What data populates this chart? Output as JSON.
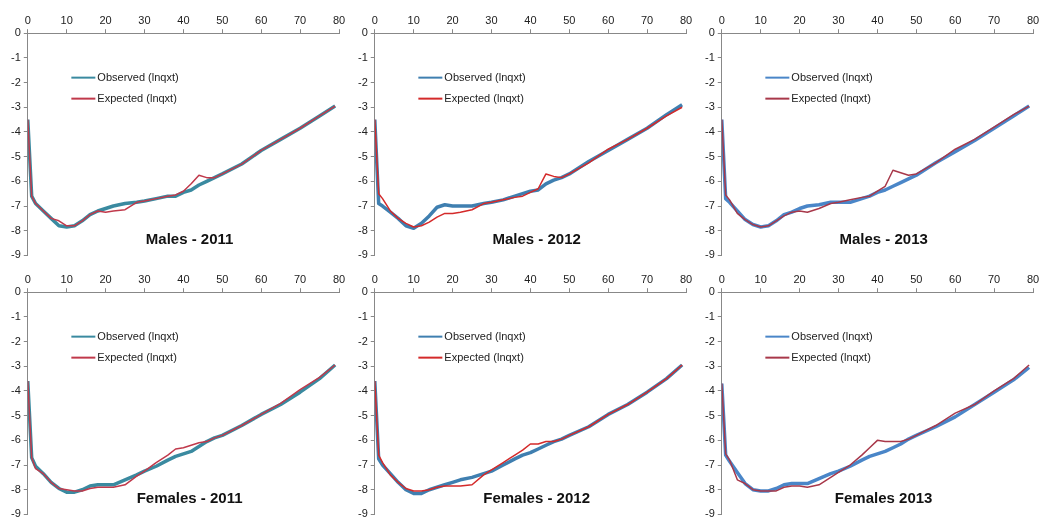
{
  "chart_data": [
    {
      "type": "line",
      "title": "Males - 2011",
      "x": [
        0,
        1,
        2,
        4,
        6,
        8,
        10,
        12,
        14,
        16,
        18,
        20,
        22,
        25,
        28,
        30,
        33,
        36,
        38,
        40,
        42,
        44,
        46,
        48,
        50,
        55,
        60,
        65,
        70,
        75,
        79
      ],
      "xlim": [
        0,
        80
      ],
      "xticks": [
        0,
        10,
        20,
        30,
        40,
        50,
        60,
        70,
        80
      ],
      "ylim": [
        -9,
        0
      ],
      "yticks": [
        0,
        -1,
        -2,
        -3,
        -4,
        -5,
        -6,
        -7,
        -8,
        -9
      ],
      "grid": false,
      "legend": "top left",
      "marker": "none",
      "series": [
        {
          "name": "Observed (lnqxt)",
          "color": "#3a8aa0",
          "values": [
            -3.5,
            -6.6,
            -6.9,
            -7.2,
            -7.5,
            -7.8,
            -7.85,
            -7.8,
            -7.6,
            -7.35,
            -7.2,
            -7.1,
            -7.0,
            -6.9,
            -6.85,
            -6.8,
            -6.7,
            -6.6,
            -6.6,
            -6.45,
            -6.35,
            -6.15,
            -6.0,
            -5.85,
            -5.7,
            -5.3,
            -4.75,
            -4.3,
            -3.85,
            -3.35,
            -2.95
          ]
        },
        {
          "name": "Expected (lnqxt)",
          "color": "#c0394b",
          "values": [
            -3.5,
            -6.6,
            -6.9,
            -7.2,
            -7.5,
            -7.6,
            -7.8,
            -7.8,
            -7.6,
            -7.35,
            -7.2,
            -7.25,
            -7.2,
            -7.15,
            -6.85,
            -6.8,
            -6.7,
            -6.6,
            -6.55,
            -6.4,
            -6.1,
            -5.75,
            -5.85,
            -5.85,
            -5.7,
            -5.3,
            -4.75,
            -4.3,
            -3.85,
            -3.35,
            -2.95
          ]
        }
      ]
    },
    {
      "type": "line",
      "title": "Males - 2012",
      "x": [
        0,
        1,
        2,
        4,
        6,
        8,
        10,
        12,
        14,
        16,
        18,
        20,
        22,
        25,
        28,
        30,
        33,
        36,
        38,
        40,
        42,
        44,
        46,
        48,
        50,
        55,
        60,
        65,
        70,
        75,
        79
      ],
      "xlim": [
        0,
        80
      ],
      "xticks": [
        0,
        10,
        20,
        30,
        40,
        50,
        60,
        70,
        80
      ],
      "ylim": [
        -9,
        0
      ],
      "yticks": [
        0,
        -1,
        -2,
        -3,
        -4,
        -5,
        -6,
        -7,
        -8,
        -9
      ],
      "grid": false,
      "legend": "top left",
      "marker": "none",
      "series": [
        {
          "name": "Observed (lnqxt)",
          "color": "#3f7fb0",
          "values": [
            -3.5,
            -6.9,
            -7.0,
            -7.25,
            -7.5,
            -7.8,
            -7.9,
            -7.7,
            -7.4,
            -7.05,
            -6.95,
            -7.0,
            -7.0,
            -7.0,
            -6.9,
            -6.85,
            -6.75,
            -6.6,
            -6.5,
            -6.4,
            -6.35,
            -6.1,
            -5.95,
            -5.85,
            -5.7,
            -5.2,
            -4.75,
            -4.3,
            -3.85,
            -3.3,
            -2.9
          ]
        },
        {
          "name": "Expected (lnqxt)",
          "color": "#d42a2a",
          "values": [
            -3.5,
            -6.5,
            -6.7,
            -7.2,
            -7.5,
            -7.7,
            -7.85,
            -7.8,
            -7.65,
            -7.45,
            -7.3,
            -7.3,
            -7.25,
            -7.15,
            -6.9,
            -6.85,
            -6.75,
            -6.65,
            -6.6,
            -6.45,
            -6.3,
            -5.7,
            -5.8,
            -5.85,
            -5.7,
            -5.25,
            -4.7,
            -4.3,
            -3.85,
            -3.35,
            -3.0
          ]
        }
      ]
    },
    {
      "type": "line",
      "title": "Males - 2013",
      "x": [
        0,
        1,
        2,
        4,
        6,
        8,
        10,
        12,
        14,
        16,
        18,
        20,
        22,
        25,
        28,
        30,
        33,
        36,
        38,
        40,
        42,
        44,
        46,
        48,
        50,
        55,
        60,
        65,
        70,
        75,
        79
      ],
      "xlim": [
        0,
        80
      ],
      "xticks": [
        0,
        10,
        20,
        30,
        40,
        50,
        60,
        70,
        80
      ],
      "ylim": [
        -9,
        0
      ],
      "yticks": [
        0,
        -1,
        -2,
        -3,
        -4,
        -5,
        -6,
        -7,
        -8,
        -9
      ],
      "grid": false,
      "legend": "top left",
      "marker": "none",
      "series": [
        {
          "name": "Observed (lnqxt)",
          "color": "#4a86c8",
          "values": [
            -3.5,
            -6.7,
            -6.85,
            -7.2,
            -7.55,
            -7.75,
            -7.85,
            -7.8,
            -7.6,
            -7.35,
            -7.25,
            -7.1,
            -7.0,
            -6.95,
            -6.85,
            -6.85,
            -6.85,
            -6.7,
            -6.6,
            -6.45,
            -6.35,
            -6.2,
            -6.05,
            -5.9,
            -5.75,
            -5.25,
            -4.8,
            -4.35,
            -3.85,
            -3.35,
            -2.95
          ]
        },
        {
          "name": "Expected (lnqxt)",
          "color": "#a8384a",
          "values": [
            -3.5,
            -6.55,
            -6.75,
            -7.3,
            -7.55,
            -7.75,
            -7.85,
            -7.8,
            -7.6,
            -7.4,
            -7.25,
            -7.2,
            -7.25,
            -7.1,
            -6.9,
            -6.85,
            -6.75,
            -6.65,
            -6.6,
            -6.4,
            -6.2,
            -5.55,
            -5.65,
            -5.75,
            -5.7,
            -5.25,
            -4.7,
            -4.3,
            -3.8,
            -3.3,
            -2.95
          ]
        }
      ]
    },
    {
      "type": "line",
      "title": "Females - 2011",
      "x": [
        0,
        1,
        2,
        4,
        6,
        8,
        10,
        12,
        14,
        16,
        18,
        20,
        22,
        25,
        28,
        30,
        33,
        36,
        38,
        40,
        42,
        44,
        46,
        48,
        50,
        55,
        60,
        65,
        70,
        75,
        79
      ],
      "xlim": [
        0,
        80
      ],
      "xticks": [
        0,
        10,
        20,
        30,
        40,
        50,
        60,
        70,
        80
      ],
      "ylim": [
        -9,
        0
      ],
      "yticks": [
        0,
        -1,
        -2,
        -3,
        -4,
        -5,
        -6,
        -7,
        -8,
        -9
      ],
      "grid": false,
      "legend": "top left",
      "marker": "none",
      "series": [
        {
          "name": "Observed (lnqxt)",
          "color": "#3a8aa0",
          "values": [
            -3.6,
            -6.7,
            -7.05,
            -7.35,
            -7.7,
            -7.95,
            -8.1,
            -8.1,
            -8.0,
            -7.85,
            -7.8,
            -7.8,
            -7.8,
            -7.6,
            -7.4,
            -7.25,
            -7.05,
            -6.8,
            -6.65,
            -6.55,
            -6.45,
            -6.25,
            -6.05,
            -5.9,
            -5.8,
            -5.4,
            -4.95,
            -4.55,
            -4.05,
            -3.5,
            -2.95
          ]
        },
        {
          "name": "Expected (lnqxt)",
          "color": "#c0394b",
          "values": [
            -3.6,
            -6.7,
            -7.15,
            -7.35,
            -7.7,
            -7.95,
            -8.0,
            -8.05,
            -8.05,
            -7.95,
            -7.9,
            -7.9,
            -7.9,
            -7.8,
            -7.45,
            -7.25,
            -6.9,
            -6.6,
            -6.35,
            -6.3,
            -6.2,
            -6.1,
            -6.05,
            -5.9,
            -5.8,
            -5.4,
            -4.95,
            -4.5,
            -3.95,
            -3.45,
            -2.95
          ]
        }
      ]
    },
    {
      "type": "line",
      "title": "Females - 2012",
      "x": [
        0,
        1,
        2,
        4,
        6,
        8,
        10,
        12,
        14,
        16,
        18,
        20,
        22,
        25,
        28,
        30,
        33,
        36,
        38,
        40,
        42,
        44,
        46,
        48,
        50,
        55,
        60,
        65,
        70,
        75,
        79
      ],
      "xlim": [
        0,
        80
      ],
      "xticks": [
        0,
        10,
        20,
        30,
        40,
        50,
        60,
        70,
        80
      ],
      "ylim": [
        -9,
        0
      ],
      "yticks": [
        0,
        -1,
        -2,
        -3,
        -4,
        -5,
        -6,
        -7,
        -8,
        -9
      ],
      "grid": false,
      "legend": "top left",
      "marker": "none",
      "series": [
        {
          "name": "Observed (lnqxt)",
          "color": "#3f7fb0",
          "values": [
            -3.6,
            -6.75,
            -7.0,
            -7.35,
            -7.7,
            -8.0,
            -8.15,
            -8.15,
            -8.0,
            -7.9,
            -7.8,
            -7.7,
            -7.6,
            -7.5,
            -7.35,
            -7.25,
            -7.0,
            -6.75,
            -6.6,
            -6.5,
            -6.35,
            -6.2,
            -6.05,
            -5.95,
            -5.8,
            -5.45,
            -4.95,
            -4.55,
            -4.05,
            -3.5,
            -2.95
          ]
        },
        {
          "name": "Expected (lnqxt)",
          "color": "#d42a2a",
          "values": [
            -3.6,
            -6.6,
            -6.9,
            -7.4,
            -7.7,
            -7.95,
            -8.05,
            -8.05,
            -8.0,
            -7.9,
            -7.85,
            -7.85,
            -7.85,
            -7.8,
            -7.4,
            -7.2,
            -6.9,
            -6.6,
            -6.4,
            -6.15,
            -6.15,
            -6.05,
            -6.05,
            -5.95,
            -5.8,
            -5.45,
            -4.95,
            -4.55,
            -4.05,
            -3.5,
            -2.95
          ]
        }
      ]
    },
    {
      "type": "line",
      "title": "Females 2013",
      "x": [
        0,
        1,
        2,
        4,
        6,
        8,
        10,
        12,
        14,
        16,
        18,
        20,
        22,
        25,
        28,
        30,
        33,
        36,
        38,
        40,
        42,
        44,
        46,
        48,
        50,
        55,
        60,
        65,
        70,
        75,
        79
      ],
      "xlim": [
        0,
        80
      ],
      "xticks": [
        0,
        10,
        20,
        30,
        40,
        50,
        60,
        70,
        80
      ],
      "ylim": [
        -9,
        0
      ],
      "yticks": [
        0,
        -1,
        -2,
        -3,
        -4,
        -5,
        -6,
        -7,
        -8,
        -9
      ],
      "grid": false,
      "legend": "top left",
      "marker": "none",
      "series": [
        {
          "name": "Observed (lnqxt)",
          "color": "#4a86c8",
          "values": [
            -3.7,
            -6.6,
            -6.85,
            -7.3,
            -7.75,
            -8.0,
            -8.05,
            -8.05,
            -7.95,
            -7.8,
            -7.75,
            -7.75,
            -7.75,
            -7.55,
            -7.35,
            -7.25,
            -7.05,
            -6.8,
            -6.65,
            -6.55,
            -6.45,
            -6.3,
            -6.15,
            -5.95,
            -5.8,
            -5.45,
            -5.05,
            -4.55,
            -4.05,
            -3.55,
            -3.05
          ]
        },
        {
          "name": "Expected (lnqxt)",
          "color": "#a8384a",
          "values": [
            -3.7,
            -6.55,
            -6.8,
            -7.6,
            -7.75,
            -8.0,
            -8.05,
            -8.05,
            -8.05,
            -7.9,
            -7.85,
            -7.85,
            -7.9,
            -7.8,
            -7.5,
            -7.3,
            -7.0,
            -6.6,
            -6.3,
            -6.0,
            -6.05,
            -6.05,
            -6.05,
            -5.95,
            -5.8,
            -5.4,
            -4.9,
            -4.55,
            -4.0,
            -3.5,
            -2.95
          ]
        }
      ]
    }
  ]
}
